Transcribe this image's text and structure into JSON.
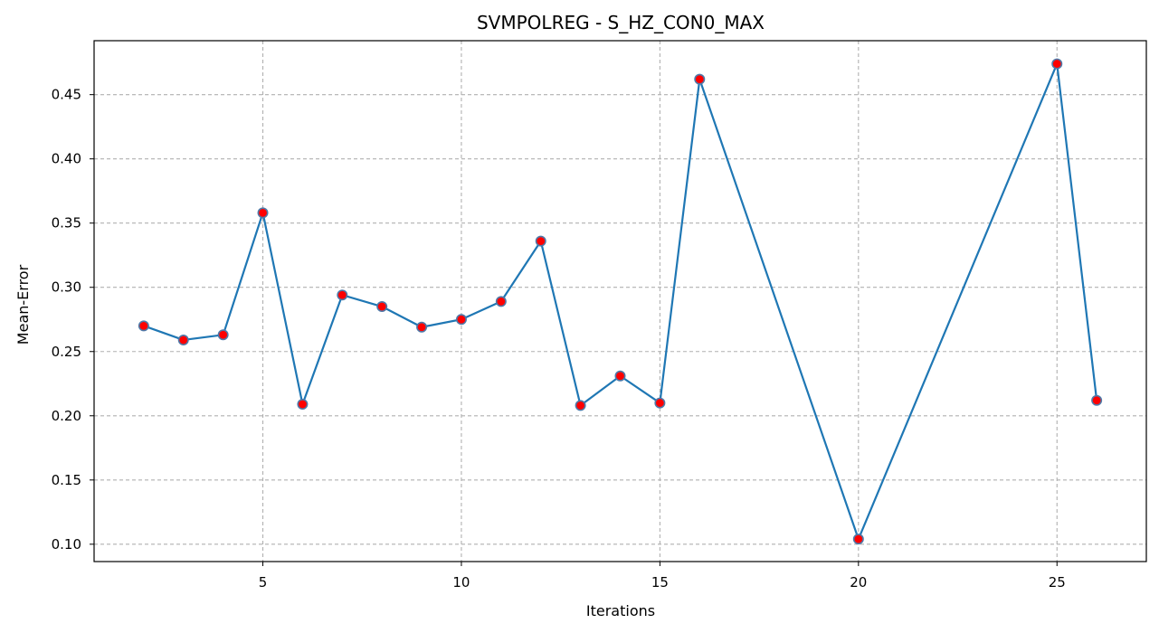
{
  "chart_data": {
    "type": "line",
    "title": "SVMPOLREG - S_HZ_CON0_MAX",
    "xlabel": "Iterations",
    "ylabel": "Mean-Error",
    "xlim": [
      0.75,
      27.25
    ],
    "ylim": [
      0.0865,
      0.492
    ],
    "x_ticks": [
      5,
      10,
      15,
      20,
      25
    ],
    "y_ticks": [
      0.1,
      0.15,
      0.2,
      0.25,
      0.3,
      0.35,
      0.4,
      0.45
    ],
    "grid": true,
    "legend": "none",
    "series": [
      {
        "x": [
          2,
          3,
          4,
          5,
          6,
          7,
          8,
          9,
          10,
          11,
          12,
          13,
          14,
          15,
          16,
          20,
          25,
          26
        ],
        "values": [
          0.27,
          0.259,
          0.263,
          0.358,
          0.209,
          0.294,
          0.285,
          0.269,
          0.275,
          0.289,
          0.336,
          0.208,
          0.231,
          0.21,
          0.462,
          0.104,
          0.474,
          0.212
        ]
      }
    ],
    "colors": {
      "line": "#1f77b4",
      "marker_fill": "#ff0000",
      "marker_edge": "#4f79a8",
      "grid": "#b0b0b0",
      "axes": "#000000"
    }
  }
}
